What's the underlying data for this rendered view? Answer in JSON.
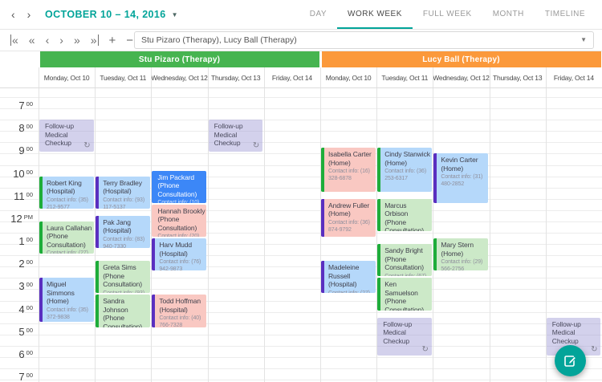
{
  "accent_color": "#02a499",
  "header": {
    "prev_glyph": "‹",
    "next_glyph": "›",
    "date_label": "OCTOBER 10 – 14, 2016",
    "date_caret": "▼",
    "tabs": [
      {
        "label": "DAY",
        "active": false
      },
      {
        "label": "WORK WEEK",
        "active": true
      },
      {
        "label": "FULL WEEK",
        "active": false
      },
      {
        "label": "MONTH",
        "active": false
      },
      {
        "label": "TIMELINE",
        "active": false
      }
    ]
  },
  "toolbar": {
    "nav_icons": [
      {
        "name": "go-to-start-icon",
        "glyph": "«",
        "bar": "left"
      },
      {
        "name": "fast-backward-icon",
        "glyph": "«"
      },
      {
        "name": "step-back-icon",
        "glyph": "‹"
      },
      {
        "name": "step-forward-icon",
        "glyph": "›"
      },
      {
        "name": "fast-forward-icon",
        "glyph": "»"
      },
      {
        "name": "go-to-end-icon",
        "glyph": "»",
        "bar": "right"
      },
      {
        "name": "zoom-in-icon",
        "glyph": "+",
        "math": true
      },
      {
        "name": "zoom-out-icon",
        "glyph": "−",
        "math": true
      }
    ],
    "resource_filter": {
      "value": "Stu Pizaro (Therapy), Lucy Ball (Therapy)",
      "caret": "▼"
    }
  },
  "scheduler": {
    "resources": [
      {
        "name": "Stu Pizaro (Therapy)",
        "color": "#46b450"
      },
      {
        "name": "Lucy Ball (Therapy)",
        "color": "#fb993b"
      }
    ],
    "days": [
      "Monday, Oct 10",
      "Tuesday, Oct 11",
      "Wednesday, Oct 12",
      "Thursday, Oct 13",
      "Friday, Oct 14"
    ],
    "time_labels": [
      {
        "h": "7",
        "s": "00"
      },
      {
        "h": "8",
        "s": "00"
      },
      {
        "h": "9",
        "s": "00"
      },
      {
        "h": "10",
        "s": "00"
      },
      {
        "h": "11",
        "s": "00"
      },
      {
        "h": "12",
        "s": "PM"
      },
      {
        "h": "1",
        "s": "00"
      },
      {
        "h": "2",
        "s": "00"
      },
      {
        "h": "3",
        "s": "00"
      },
      {
        "h": "4",
        "s": "00"
      },
      {
        "h": "5",
        "s": "00"
      },
      {
        "h": "6",
        "s": "00"
      },
      {
        "h": "7",
        "s": "00"
      }
    ],
    "palette": {
      "hospital_home_blue": "#b5d8fa",
      "phone_consultation_green": "#cce9c8",
      "salmon": "#f9c8c2",
      "recurring_lavender": "#c7c4e5",
      "selected_blue": "#3c87f7",
      "strip_green": "#1ead3a",
      "strip_purple": "#5a2fc0"
    },
    "appointments": [
      {
        "title": "Follow-up Medical Checkup",
        "contact": "",
        "resource": 0,
        "day": 0,
        "start": 8.0,
        "end": 9.5,
        "kind": "lavender",
        "strip": "none",
        "recurring": true
      },
      {
        "title": "Robert King (Hospital)",
        "contact": "Contact info: (35) 212-9577",
        "resource": 0,
        "day": 0,
        "start": 10.5,
        "end": 12.0,
        "kind": "blue",
        "strip": "green",
        "recurring": false
      },
      {
        "title": "Laura Callahan (Phone Consultation)",
        "contact": "Contact info: (27)",
        "resource": 0,
        "day": 0,
        "start": 12.5,
        "end": 14.0,
        "kind": "green",
        "strip": "green",
        "recurring": false
      },
      {
        "title": "Miguel Simmons (Home)",
        "contact": "Contact info: (35) 372-9838",
        "resource": 0,
        "day": 0,
        "start": 15.0,
        "end": 17.0,
        "kind": "blue",
        "strip": "purple",
        "recurring": false
      },
      {
        "title": "Terry Bradley (Hospital)",
        "contact": "Contact info: (93) 117-5137",
        "resource": 0,
        "day": 1,
        "start": 10.5,
        "end": 12.0,
        "kind": "blue",
        "strip": "purple",
        "recurring": false
      },
      {
        "title": "Pak Jang (Hospital)",
        "contact": "Contact info: (83) 940-7330",
        "resource": 0,
        "day": 1,
        "start": 12.25,
        "end": 13.75,
        "kind": "blue",
        "strip": "purple",
        "recurring": false
      },
      {
        "title": "Greta Sims (Phone Consultation)",
        "contact": "Contact info: (93)",
        "resource": 0,
        "day": 1,
        "start": 14.25,
        "end": 15.75,
        "kind": "green",
        "strip": "green",
        "recurring": false
      },
      {
        "title": "Sandra Johnson (Phone Consultation)",
        "contact": "Contact info: (26)",
        "resource": 0,
        "day": 1,
        "start": 15.75,
        "end": 17.25,
        "kind": "green",
        "strip": "green",
        "recurring": false
      },
      {
        "title": "Jim Packard (Phone Consultation)",
        "contact": "Contact info: (10)",
        "resource": 0,
        "day": 2,
        "start": 10.25,
        "end": 11.75,
        "kind": "selected",
        "strip": "none",
        "recurring": false
      },
      {
        "title": "Hannah Brookly (Phone Consultation)",
        "contact": "Contact info: (20)",
        "resource": 0,
        "day": 2,
        "start": 11.75,
        "end": 13.25,
        "kind": "salmon",
        "strip": "none",
        "recurring": false
      },
      {
        "title": "Harv Mudd (Hospital)",
        "contact": "Contact info: (76) 942-9873",
        "resource": 0,
        "day": 2,
        "start": 13.25,
        "end": 14.75,
        "kind": "blue",
        "strip": "purple",
        "recurring": false
      },
      {
        "title": "Todd Hoffman (Hospital)",
        "contact": "Contact info: (40) 766-7328",
        "resource": 0,
        "day": 2,
        "start": 15.75,
        "end": 17.25,
        "kind": "salmon",
        "strip": "purple",
        "recurring": false
      },
      {
        "title": "Follow-up Medical Checkup",
        "contact": "",
        "resource": 0,
        "day": 3,
        "start": 8.0,
        "end": 9.5,
        "kind": "lavender",
        "strip": "none",
        "recurring": true
      },
      {
        "title": "Isabella Carter (Home)",
        "contact": "Contact info: (16) 328-6878",
        "resource": 1,
        "day": 0,
        "start": 9.25,
        "end": 11.25,
        "kind": "salmon",
        "strip": "green",
        "recurring": false
      },
      {
        "title": "Andrew Fuller (Home)",
        "contact": "Contact info: (36) 874-9792",
        "resource": 1,
        "day": 0,
        "start": 11.5,
        "end": 13.25,
        "kind": "salmon",
        "strip": "purple",
        "recurring": false
      },
      {
        "title": "Madeleine Russell (Hospital)",
        "contact": "Contact info: (27)",
        "resource": 1,
        "day": 0,
        "start": 14.25,
        "end": 15.75,
        "kind": "blue",
        "strip": "purple",
        "recurring": false
      },
      {
        "title": "Cindy Stanwick (Home)",
        "contact": "Contact info: (36) 253-6317",
        "resource": 1,
        "day": 1,
        "start": 9.25,
        "end": 11.25,
        "kind": "blue",
        "strip": "green",
        "recurring": false
      },
      {
        "title": "Marcus Orbison (Phone Consultation)",
        "contact": "Contact info: (66)",
        "resource": 1,
        "day": 1,
        "start": 11.5,
        "end": 13.0,
        "kind": "green",
        "strip": "green",
        "recurring": false
      },
      {
        "title": "Sandy Bright (Phone Consultation)",
        "contact": "Contact info: (67)",
        "resource": 1,
        "day": 1,
        "start": 13.5,
        "end": 15.0,
        "kind": "green",
        "strip": "green",
        "recurring": false
      },
      {
        "title": "Ken Samuelson (Phone Consultation)",
        "contact": "Contact info: (24)",
        "resource": 1,
        "day": 1,
        "start": 15.0,
        "end": 16.5,
        "kind": "green",
        "strip": "green",
        "recurring": false
      },
      {
        "title": "Follow-up Medical Checkup",
        "contact": "",
        "resource": 1,
        "day": 1,
        "start": 16.75,
        "end": 18.5,
        "kind": "lavender",
        "strip": "none",
        "recurring": true
      },
      {
        "title": "Kevin Carter (Home)",
        "contact": "Contact info: (31) 480-2852",
        "resource": 1,
        "day": 2,
        "start": 9.5,
        "end": 11.75,
        "kind": "blue",
        "strip": "purple",
        "recurring": false
      },
      {
        "title": "Mary Stern (Home)",
        "contact": "Contact info: (29) 566-2756",
        "resource": 1,
        "day": 2,
        "start": 13.25,
        "end": 14.75,
        "kind": "green",
        "strip": "green",
        "recurring": false
      },
      {
        "title": "Follow-up Medical Checkup",
        "contact": "",
        "resource": 1,
        "day": 4,
        "start": 16.75,
        "end": 18.5,
        "kind": "lavender",
        "strip": "none",
        "recurring": true
      }
    ],
    "recurrence_glyph": "↻"
  },
  "fab": {
    "color": "#02a499",
    "icon": "edit-appointment-icon"
  }
}
